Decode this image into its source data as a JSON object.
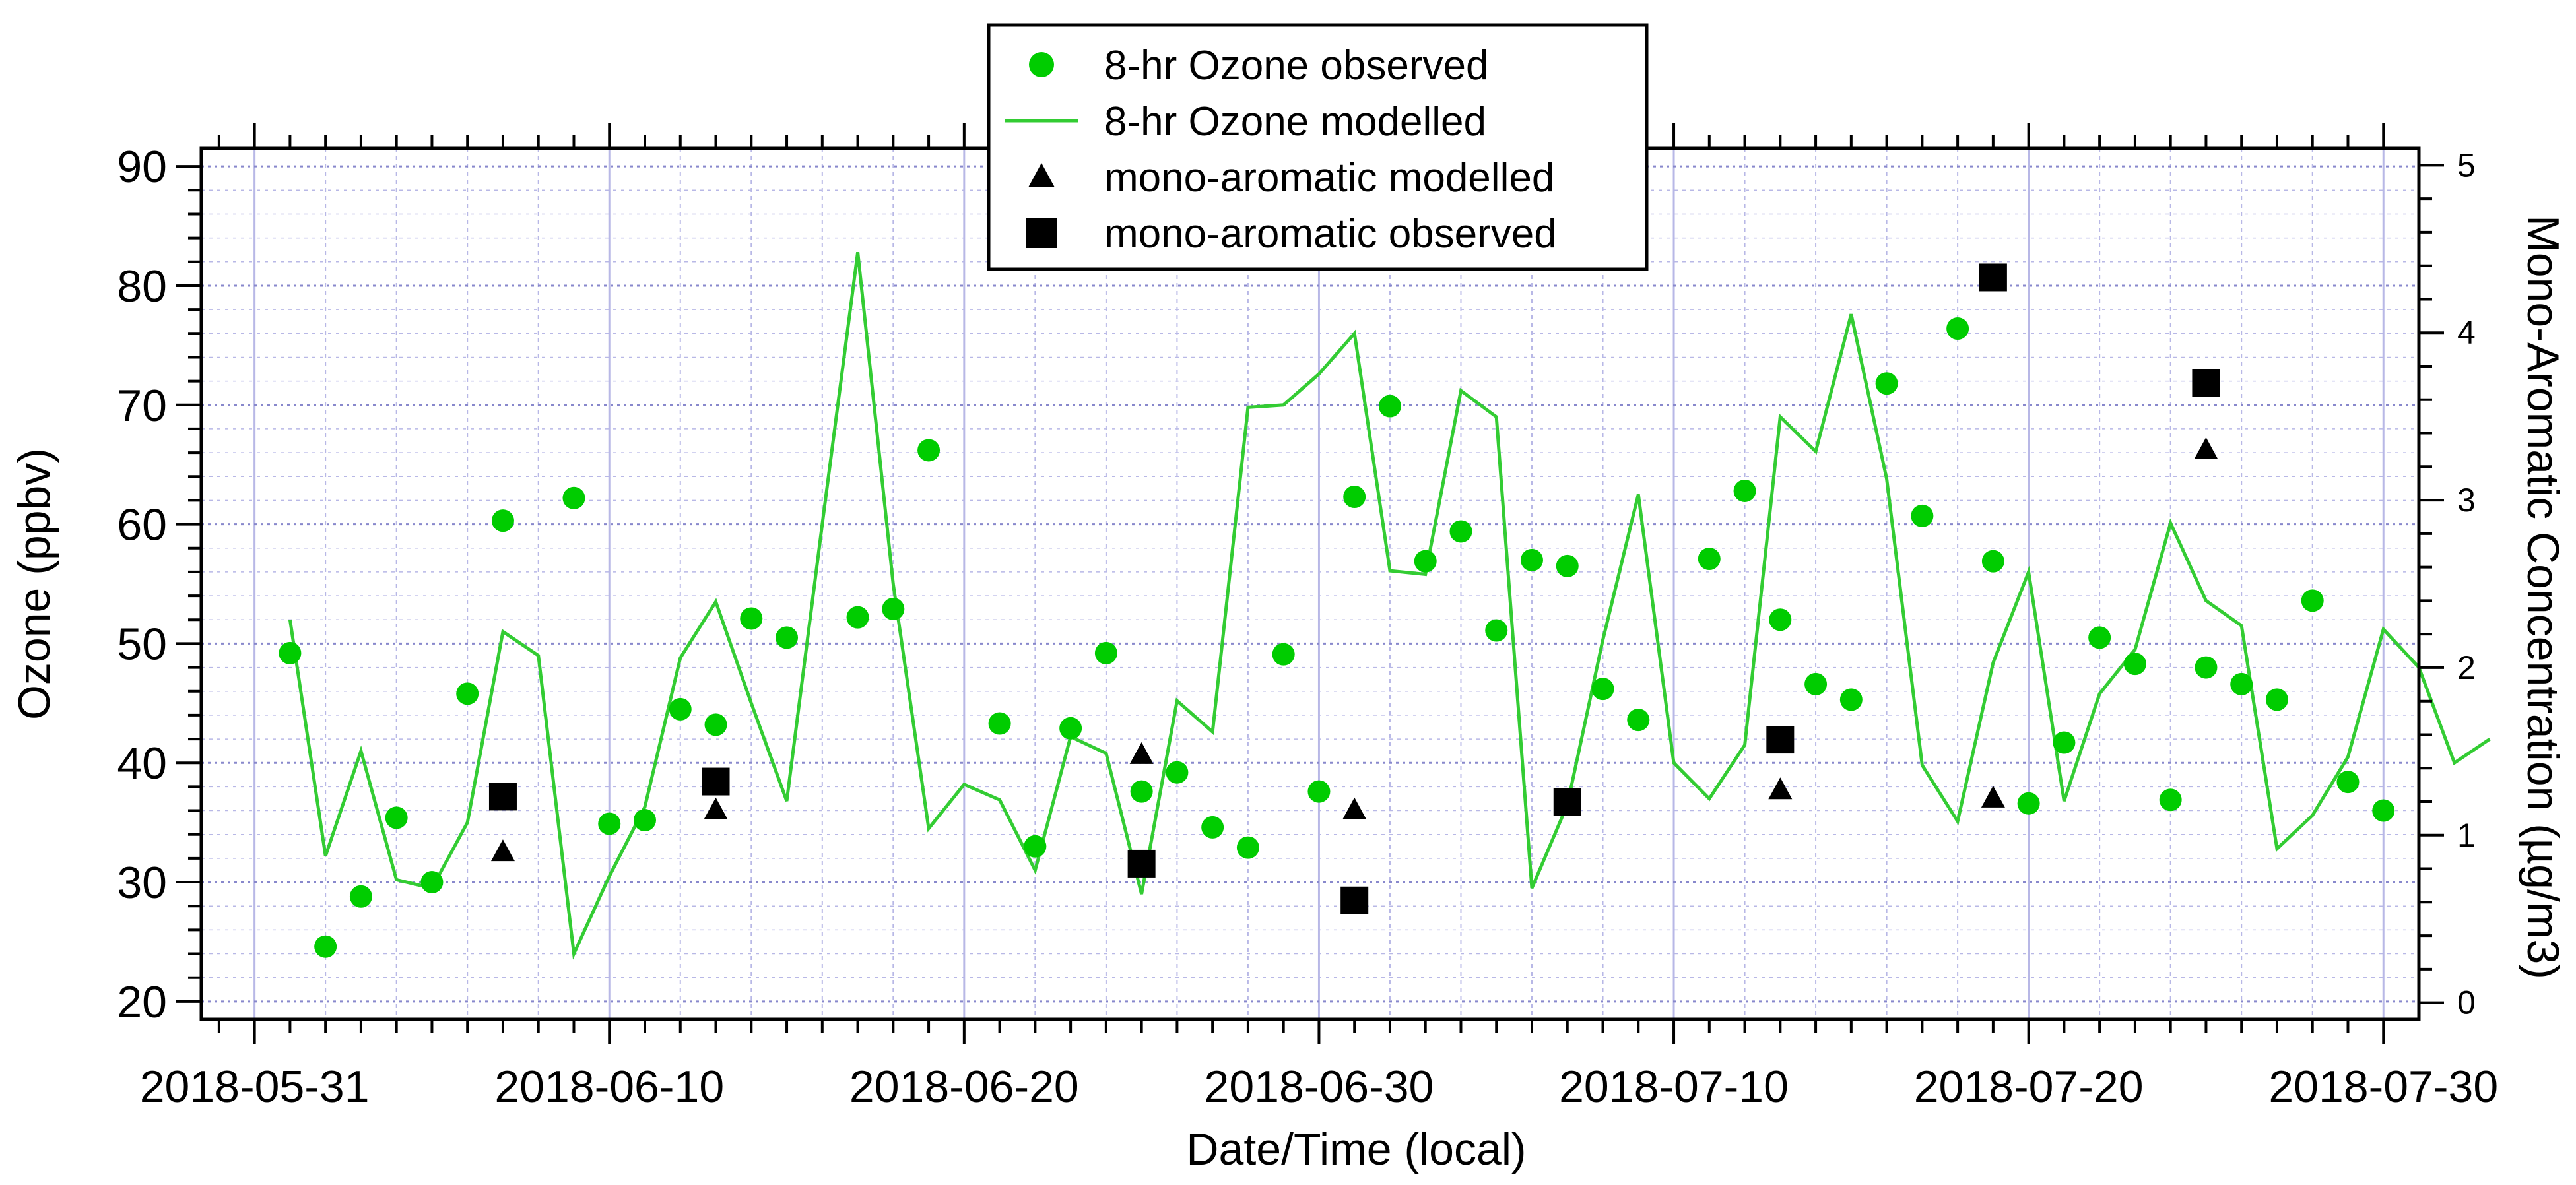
{
  "chart_data": {
    "type": "line",
    "x_axis": {
      "title": "Date/Time (local)",
      "tick_labels": [
        "2018-05-31",
        "2018-06-10",
        "2018-06-20",
        "2018-06-30",
        "2018-07-10",
        "2018-07-20",
        "2018-07-30"
      ],
      "range_days": [
        -1.5,
        61
      ],
      "tick_days": [
        0,
        10,
        20,
        30,
        40,
        50,
        60
      ]
    },
    "y_left": {
      "title": "Ozone (ppbv)",
      "ylim": [
        18.5,
        91.5
      ],
      "ticks": [
        20,
        30,
        40,
        50,
        60,
        70,
        80,
        90
      ]
    },
    "y_right": {
      "title": "Mono-Aromatic Concentration (µg/m3)",
      "ylim": [
        -0.1,
        5.1
      ],
      "ticks": [
        0,
        1,
        2,
        3,
        4,
        5
      ]
    },
    "grid": true,
    "legend_position": "top-center",
    "colors": {
      "observed": "#00cc00",
      "modelled": "#33cc33",
      "aromatic": "#000000",
      "grid": "#b8b8e6"
    },
    "series": [
      {
        "name": "8-hr Ozone observed",
        "marker": "circle",
        "axis": "left",
        "x": [
          1,
          2,
          3,
          4,
          5,
          6,
          7,
          9,
          10,
          11,
          12,
          13,
          14,
          15,
          17,
          18,
          19,
          21,
          22,
          23,
          24,
          25,
          26,
          27,
          28,
          29,
          30,
          31,
          32,
          33,
          34,
          35,
          36,
          37,
          38,
          39,
          41,
          42,
          43,
          44,
          45,
          46,
          47,
          48,
          49,
          50,
          51,
          52,
          53,
          54,
          55,
          56,
          57,
          58,
          59,
          60
        ],
        "values": [
          49.2,
          24.6,
          28.8,
          35.4,
          30.0,
          45.8,
          60.3,
          62.2,
          34.9,
          35.2,
          44.5,
          43.2,
          52.1,
          50.5,
          52.2,
          52.9,
          66.2,
          43.3,
          33.0,
          42.9,
          49.2,
          37.6,
          39.2,
          34.6,
          32.9,
          49.1,
          37.6,
          62.3,
          69.9,
          56.9,
          59.4,
          51.1,
          57.0,
          56.5,
          46.2,
          43.6,
          57.1,
          62.8,
          52.0,
          46.6,
          45.3,
          71.8,
          60.7,
          76.4,
          56.9,
          36.6,
          41.7,
          50.5,
          48.3,
          36.9,
          48.0,
          46.6,
          45.3,
          53.6,
          38.4,
          36.0
        ]
      },
      {
        "name": "8-hr Ozone modelled",
        "marker": "line",
        "axis": "left",
        "x": [
          1,
          2,
          3,
          4,
          5,
          6,
          7,
          8,
          9,
          10,
          11,
          12,
          13,
          14,
          15,
          16,
          17,
          18,
          19,
          20,
          21,
          22,
          23,
          24,
          25,
          26,
          27,
          28,
          29,
          30,
          31,
          32,
          33,
          34,
          35,
          36,
          37,
          38,
          39,
          40,
          41,
          42,
          43,
          44,
          45,
          46,
          47,
          48,
          49,
          50,
          51,
          52,
          53,
          54,
          55,
          56,
          57,
          58,
          59,
          60,
          61,
          62,
          63
        ],
        "values": [
          52.0,
          32.2,
          41.0,
          30.2,
          29.5,
          35.0,
          51.0,
          49.0,
          24.0,
          30.5,
          36.3,
          48.8,
          53.5,
          45.0,
          36.8,
          60.0,
          82.8,
          55.0,
          34.5,
          38.2,
          36.9,
          31.0,
          42.2,
          40.8,
          29.0,
          45.2,
          42.6,
          69.8,
          70.0,
          72.6,
          76.0,
          56.1,
          55.8,
          71.2,
          69.0,
          29.5,
          36.5,
          50.3,
          62.5,
          40.0,
          37.0,
          41.5,
          69.0,
          66.1,
          77.6,
          63.8,
          39.8,
          35.1,
          48.4,
          56.0,
          36.8,
          45.8,
          49.5,
          60.1,
          53.6,
          51.5,
          32.8,
          35.6,
          40.5,
          51.2,
          48.0,
          40.0,
          42.0
        ]
      },
      {
        "name": "mono-aromatic modelled",
        "marker": "triangle",
        "axis": "right",
        "x": [
          7,
          13,
          25,
          31,
          43,
          49,
          55
        ],
        "values": [
          0.9,
          1.15,
          1.48,
          1.15,
          1.27,
          1.22,
          3.3
        ]
      },
      {
        "name": "mono-aromatic observed",
        "marker": "square",
        "axis": "right",
        "x": [
          7,
          13,
          25,
          31,
          37,
          43,
          49,
          55
        ],
        "values": [
          1.23,
          1.32,
          0.83,
          0.61,
          1.2,
          1.57,
          4.33,
          3.7
        ]
      }
    ],
    "legend": [
      {
        "label": "8-hr Ozone observed",
        "marker": "circle"
      },
      {
        "label": "8-hr Ozone modelled",
        "marker": "line"
      },
      {
        "label": "mono-aromatic modelled",
        "marker": "triangle"
      },
      {
        "label": "mono-aromatic observed",
        "marker": "square"
      }
    ]
  }
}
